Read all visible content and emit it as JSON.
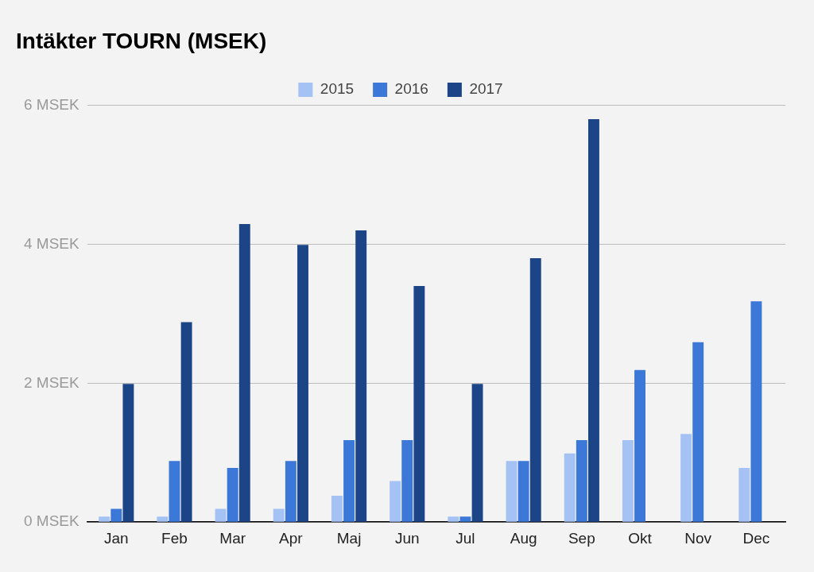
{
  "chart_data": {
    "type": "bar",
    "title": "Intäkter TOURN (MSEK)",
    "categories": [
      "Jan",
      "Feb",
      "Mar",
      "Apr",
      "Maj",
      "Jun",
      "Jul",
      "Aug",
      "Sep",
      "Okt",
      "Nov",
      "Dec"
    ],
    "series": [
      {
        "name": "2015",
        "color": "#a4c2f4",
        "values": [
          0.08,
          0.08,
          0.19,
          0.19,
          0.38,
          0.59,
          0.08,
          0.88,
          0.99,
          1.18,
          1.27,
          0.78
        ]
      },
      {
        "name": "2016",
        "color": "#3c78d8",
        "values": [
          0.19,
          0.88,
          0.78,
          0.88,
          1.18,
          1.18,
          0.08,
          0.88,
          1.18,
          2.19,
          2.59,
          3.18
        ]
      },
      {
        "name": "2017",
        "color": "#1c4587",
        "values": [
          1.99,
          2.88,
          4.29,
          3.99,
          4.2,
          3.4,
          1.99,
          3.8,
          5.8,
          null,
          null,
          null
        ]
      }
    ],
    "ylim": [
      0,
      6
    ],
    "yticks": [
      {
        "value": 0,
        "label": "0 MSEK"
      },
      {
        "value": 2,
        "label": "2 MSEK"
      },
      {
        "value": 4,
        "label": "4 MSEK"
      },
      {
        "value": 6,
        "label": "6 MSEK"
      }
    ],
    "grid": true,
    "legend": "top"
  }
}
